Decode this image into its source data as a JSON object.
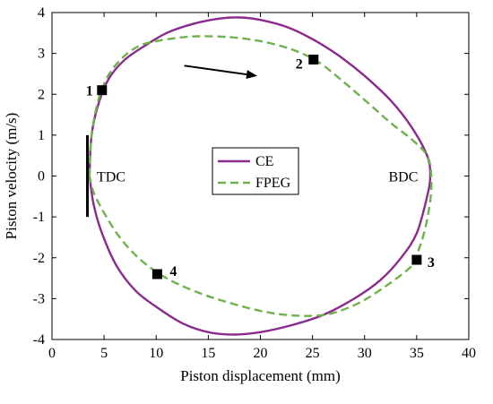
{
  "chart_data": {
    "type": "line",
    "title": "",
    "xlabel": "Piston displacement (mm)",
    "ylabel": "Piston velocity (m/s)",
    "xlim": [
      0,
      40
    ],
    "ylim": [
      -4,
      4
    ],
    "xticks": [
      0,
      5,
      10,
      15,
      20,
      25,
      30,
      35,
      40
    ],
    "yticks": [
      -4,
      -3,
      -2,
      -1,
      0,
      1,
      2,
      3,
      4
    ],
    "grid": false,
    "legend_position": "center",
    "series": [
      {
        "name": "CE",
        "color": "#8B2A8E",
        "style": "solid",
        "points": [
          [
            3.6,
            0
          ],
          [
            3.8,
            1.0
          ],
          [
            4.5,
            1.8
          ],
          [
            5.5,
            2.4
          ],
          [
            7,
            2.85
          ],
          [
            9,
            3.2
          ],
          [
            11,
            3.5
          ],
          [
            13.5,
            3.72
          ],
          [
            16,
            3.85
          ],
          [
            18,
            3.88
          ],
          [
            20,
            3.82
          ],
          [
            22.5,
            3.65
          ],
          [
            25,
            3.35
          ],
          [
            27.5,
            2.95
          ],
          [
            30,
            2.45
          ],
          [
            32.5,
            1.85
          ],
          [
            34.5,
            1.2
          ],
          [
            36,
            0.5
          ],
          [
            36.3,
            0
          ],
          [
            36,
            -0.5
          ],
          [
            35,
            -1.4
          ],
          [
            33.5,
            -2.0
          ],
          [
            31.5,
            -2.55
          ],
          [
            29,
            -3.0
          ],
          [
            26,
            -3.4
          ],
          [
            23,
            -3.65
          ],
          [
            20,
            -3.82
          ],
          [
            17.5,
            -3.88
          ],
          [
            15,
            -3.82
          ],
          [
            12.5,
            -3.6
          ],
          [
            10,
            -3.2
          ],
          [
            8,
            -2.8
          ],
          [
            6.2,
            -2.2
          ],
          [
            4.8,
            -1.4
          ],
          [
            4.0,
            -0.7
          ],
          [
            3.6,
            0
          ]
        ]
      },
      {
        "name": "FPEG",
        "color": "#6FB24C",
        "style": "dashed",
        "points": [
          [
            3.6,
            0
          ],
          [
            3.8,
            1.0
          ],
          [
            4.5,
            1.9
          ],
          [
            5.5,
            2.5
          ],
          [
            7,
            2.95
          ],
          [
            8.5,
            3.2
          ],
          [
            10,
            3.3
          ],
          [
            12,
            3.38
          ],
          [
            14,
            3.42
          ],
          [
            17,
            3.4
          ],
          [
            20,
            3.3
          ],
          [
            23,
            3.1
          ],
          [
            25.5,
            2.8
          ],
          [
            28,
            2.3
          ],
          [
            30.5,
            1.75
          ],
          [
            32.5,
            1.3
          ],
          [
            34.5,
            0.9
          ],
          [
            36,
            0.5
          ],
          [
            36.4,
            0
          ],
          [
            36.3,
            -0.6
          ],
          [
            35.8,
            -1.3
          ],
          [
            35.2,
            -1.8
          ],
          [
            34.5,
            -2.2
          ],
          [
            32,
            -2.7
          ],
          [
            29.5,
            -3.1
          ],
          [
            27,
            -3.35
          ],
          [
            25,
            -3.42
          ],
          [
            22.5,
            -3.4
          ],
          [
            20,
            -3.3
          ],
          [
            17,
            -3.1
          ],
          [
            14,
            -2.85
          ],
          [
            11,
            -2.5
          ],
          [
            8.5,
            -2.05
          ],
          [
            6.5,
            -1.5
          ],
          [
            5,
            -0.9
          ],
          [
            4.0,
            -0.4
          ],
          [
            3.6,
            0
          ]
        ]
      }
    ],
    "tdc_segment": {
      "x": 3.4,
      "y_from": -1.0,
      "y_to": 1.0,
      "color": "#000000"
    },
    "markers": [
      {
        "label": "1",
        "x": 4.8,
        "y": 2.1
      },
      {
        "label": "2",
        "x": 25.1,
        "y": 2.85
      },
      {
        "label": "3",
        "x": 35.0,
        "y": -2.05
      },
      {
        "label": "4",
        "x": 10.1,
        "y": -2.4
      }
    ],
    "annotations": [
      {
        "text": "TDC",
        "x": 4.3,
        "y": 0
      },
      {
        "text": "BDC",
        "x": 32.3,
        "y": 0
      }
    ],
    "arrow": {
      "from": [
        12.7,
        2.7
      ],
      "to": [
        19.7,
        2.45
      ]
    }
  }
}
